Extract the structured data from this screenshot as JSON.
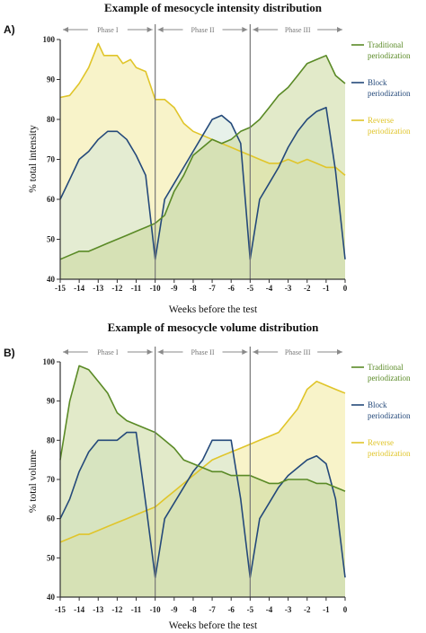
{
  "chart_data": [
    {
      "type": "area",
      "panel_label": "A)",
      "title": "Example of mesocycle intensity distribution",
      "xlabel": "Weeks before the test",
      "ylabel": "% total intensity",
      "xlim": [
        -15,
        0
      ],
      "ylim": [
        40,
        100
      ],
      "x_ticks": [
        "-15",
        "-14",
        "-13",
        "-12",
        "-11",
        "-10",
        "-9",
        "-8",
        "-7",
        "-6",
        "-5",
        "-4",
        "-3",
        "-2",
        "-1",
        "0"
      ],
      "y_ticks": [
        "40",
        "50",
        "60",
        "70",
        "80",
        "90",
        "100"
      ],
      "phases": [
        {
          "label": "Phase I",
          "from": -15,
          "to": -10
        },
        {
          "label": "Phase II",
          "from": -10,
          "to": -5
        },
        {
          "label": "Phase III",
          "from": -5,
          "to": 0
        }
      ],
      "phase_dividers": [
        -10,
        -5
      ],
      "legend_position": "right",
      "series": [
        {
          "name": "Reverse periodization",
          "color": "#e0c52a",
          "fill": "#f2ea9c",
          "x": [
            -15,
            -14.5,
            -14,
            -13.5,
            -13,
            -12.7,
            -12.3,
            -12,
            -11.7,
            -11.3,
            -11,
            -10.5,
            -10,
            -9.5,
            -9,
            -8.5,
            -8,
            -7.5,
            -7,
            -6.5,
            -6,
            -5.5,
            -5,
            -4.5,
            -4,
            -3.5,
            -3,
            -2.5,
            -2,
            -1.5,
            -1,
            -0.5,
            0
          ],
          "y": [
            85.5,
            86,
            89,
            93,
            99,
            96,
            96,
            96,
            94,
            95,
            93,
            92,
            85,
            85,
            83,
            79,
            77,
            76,
            75,
            74,
            73,
            72,
            71,
            70,
            69,
            69,
            70,
            69,
            70,
            69,
            68,
            68,
            66
          ]
        },
        {
          "name": "Block periodization",
          "color": "#24497a",
          "fill": "#d4e6d8",
          "x": [
            -15,
            -14.5,
            -14,
            -13.5,
            -13,
            -12.5,
            -12,
            -11.5,
            -11,
            -10.5,
            -10,
            -9.5,
            -9,
            -8.5,
            -8,
            -7.5,
            -7,
            -6.5,
            -6,
            -5.5,
            -5,
            -4.5,
            -4,
            -3.5,
            -3,
            -2.5,
            -2,
            -1.5,
            -1,
            -0.5,
            0
          ],
          "y": [
            60,
            65,
            70,
            72,
            75,
            77,
            77,
            75,
            71,
            66,
            45,
            60,
            64,
            68,
            72,
            76,
            80,
            81,
            79,
            74,
            45,
            60,
            64,
            68,
            73,
            77,
            80,
            82,
            83,
            67,
            45
          ]
        },
        {
          "name": "Traditional periodization",
          "color": "#5a8a26",
          "fill": "#cbd99c",
          "x": [
            -15,
            -14.5,
            -14,
            -13.5,
            -13,
            -12.5,
            -12,
            -11.5,
            -11,
            -10.5,
            -10,
            -9.5,
            -9,
            -8.5,
            -8,
            -7.5,
            -7,
            -6.5,
            -6,
            -5.5,
            -5,
            -4.5,
            -4,
            -3.5,
            -3,
            -2.5,
            -2,
            -1.5,
            -1,
            -0.5,
            0
          ],
          "y": [
            45,
            46,
            47,
            47,
            48,
            49,
            50,
            51,
            52,
            53,
            54,
            56,
            62,
            66,
            71,
            73,
            75,
            74,
            75,
            77,
            78,
            80,
            83,
            86,
            88,
            91,
            94,
            95,
            96,
            91,
            89
          ]
        }
      ]
    },
    {
      "type": "area",
      "panel_label": "B)",
      "title": "Example of mesocycle volume distribution",
      "xlabel": "Weeks before the test",
      "ylabel": "% total volume",
      "xlim": [
        -15,
        0
      ],
      "ylim": [
        40,
        100
      ],
      "x_ticks": [
        "-15",
        "-14",
        "-13",
        "-12",
        "-11",
        "-10",
        "-9",
        "-8",
        "-7",
        "-6",
        "-5",
        "-4",
        "-3",
        "-2",
        "-1",
        "0"
      ],
      "y_ticks": [
        "40",
        "50",
        "60",
        "70",
        "80",
        "90",
        "100"
      ],
      "phases": [
        {
          "label": "Phase I",
          "from": -15,
          "to": -10
        },
        {
          "label": "Phase II",
          "from": -10,
          "to": -5
        },
        {
          "label": "Phase III",
          "from": -5,
          "to": 0
        }
      ],
      "phase_dividers": [
        -10,
        -5
      ],
      "legend_position": "right",
      "series": [
        {
          "name": "Reverse periodization",
          "color": "#e0c52a",
          "fill": "#f2ea9c",
          "x": [
            -15,
            -14.5,
            -14,
            -13.5,
            -13,
            -12.5,
            -12,
            -11.5,
            -11,
            -10.5,
            -10,
            -9.5,
            -9,
            -8.5,
            -8,
            -7.5,
            -7,
            -6.5,
            -6,
            -5.5,
            -5,
            -4.5,
            -4,
            -3.5,
            -3,
            -2.5,
            -2,
            -1.5,
            -1,
            -0.5,
            0
          ],
          "y": [
            54,
            55,
            56,
            56,
            57,
            58,
            59,
            60,
            61,
            62,
            63,
            65,
            67,
            69,
            71,
            73,
            75,
            76,
            77,
            78,
            79,
            80,
            81,
            82,
            85,
            88,
            93,
            95,
            94,
            93,
            92
          ]
        },
        {
          "name": "Block periodization",
          "color": "#24497a",
          "fill": "#d4e6d8",
          "x": [
            -15,
            -14.5,
            -14,
            -13.5,
            -13,
            -12.5,
            -12,
            -11.5,
            -11,
            -10.5,
            -10,
            -9.5,
            -9,
            -8.5,
            -8,
            -7.5,
            -7,
            -6.5,
            -6,
            -5.5,
            -5,
            -4.5,
            -4,
            -3.5,
            -3,
            -2.5,
            -2,
            -1.5,
            -1,
            -0.5,
            0
          ],
          "y": [
            60,
            65,
            72,
            77,
            80,
            80,
            80,
            82,
            82,
            64,
            45,
            60,
            64,
            68,
            72,
            75,
            80,
            80,
            80,
            65,
            45,
            60,
            64,
            68,
            71,
            73,
            75,
            76,
            74,
            65,
            45
          ]
        },
        {
          "name": "Traditional periodization",
          "color": "#5a8a26",
          "fill": "#cbd99c",
          "x": [
            -15,
            -14.5,
            -14,
            -13.5,
            -13,
            -12.5,
            -12,
            -11.5,
            -11,
            -10.5,
            -10,
            -9.5,
            -9,
            -8.5,
            -8,
            -7.5,
            -7,
            -6.5,
            -6,
            -5.5,
            -5,
            -4.5,
            -4,
            -3.5,
            -3,
            -2.5,
            -2,
            -1.5,
            -1,
            -0.5,
            0
          ],
          "y": [
            75,
            90,
            99,
            98,
            95,
            92,
            87,
            85,
            84,
            83,
            82,
            80,
            78,
            75,
            74,
            73,
            72,
            72,
            71,
            71,
            71,
            70,
            69,
            69,
            70,
            70,
            70,
            69,
            69,
            68,
            67
          ]
        }
      ]
    }
  ]
}
